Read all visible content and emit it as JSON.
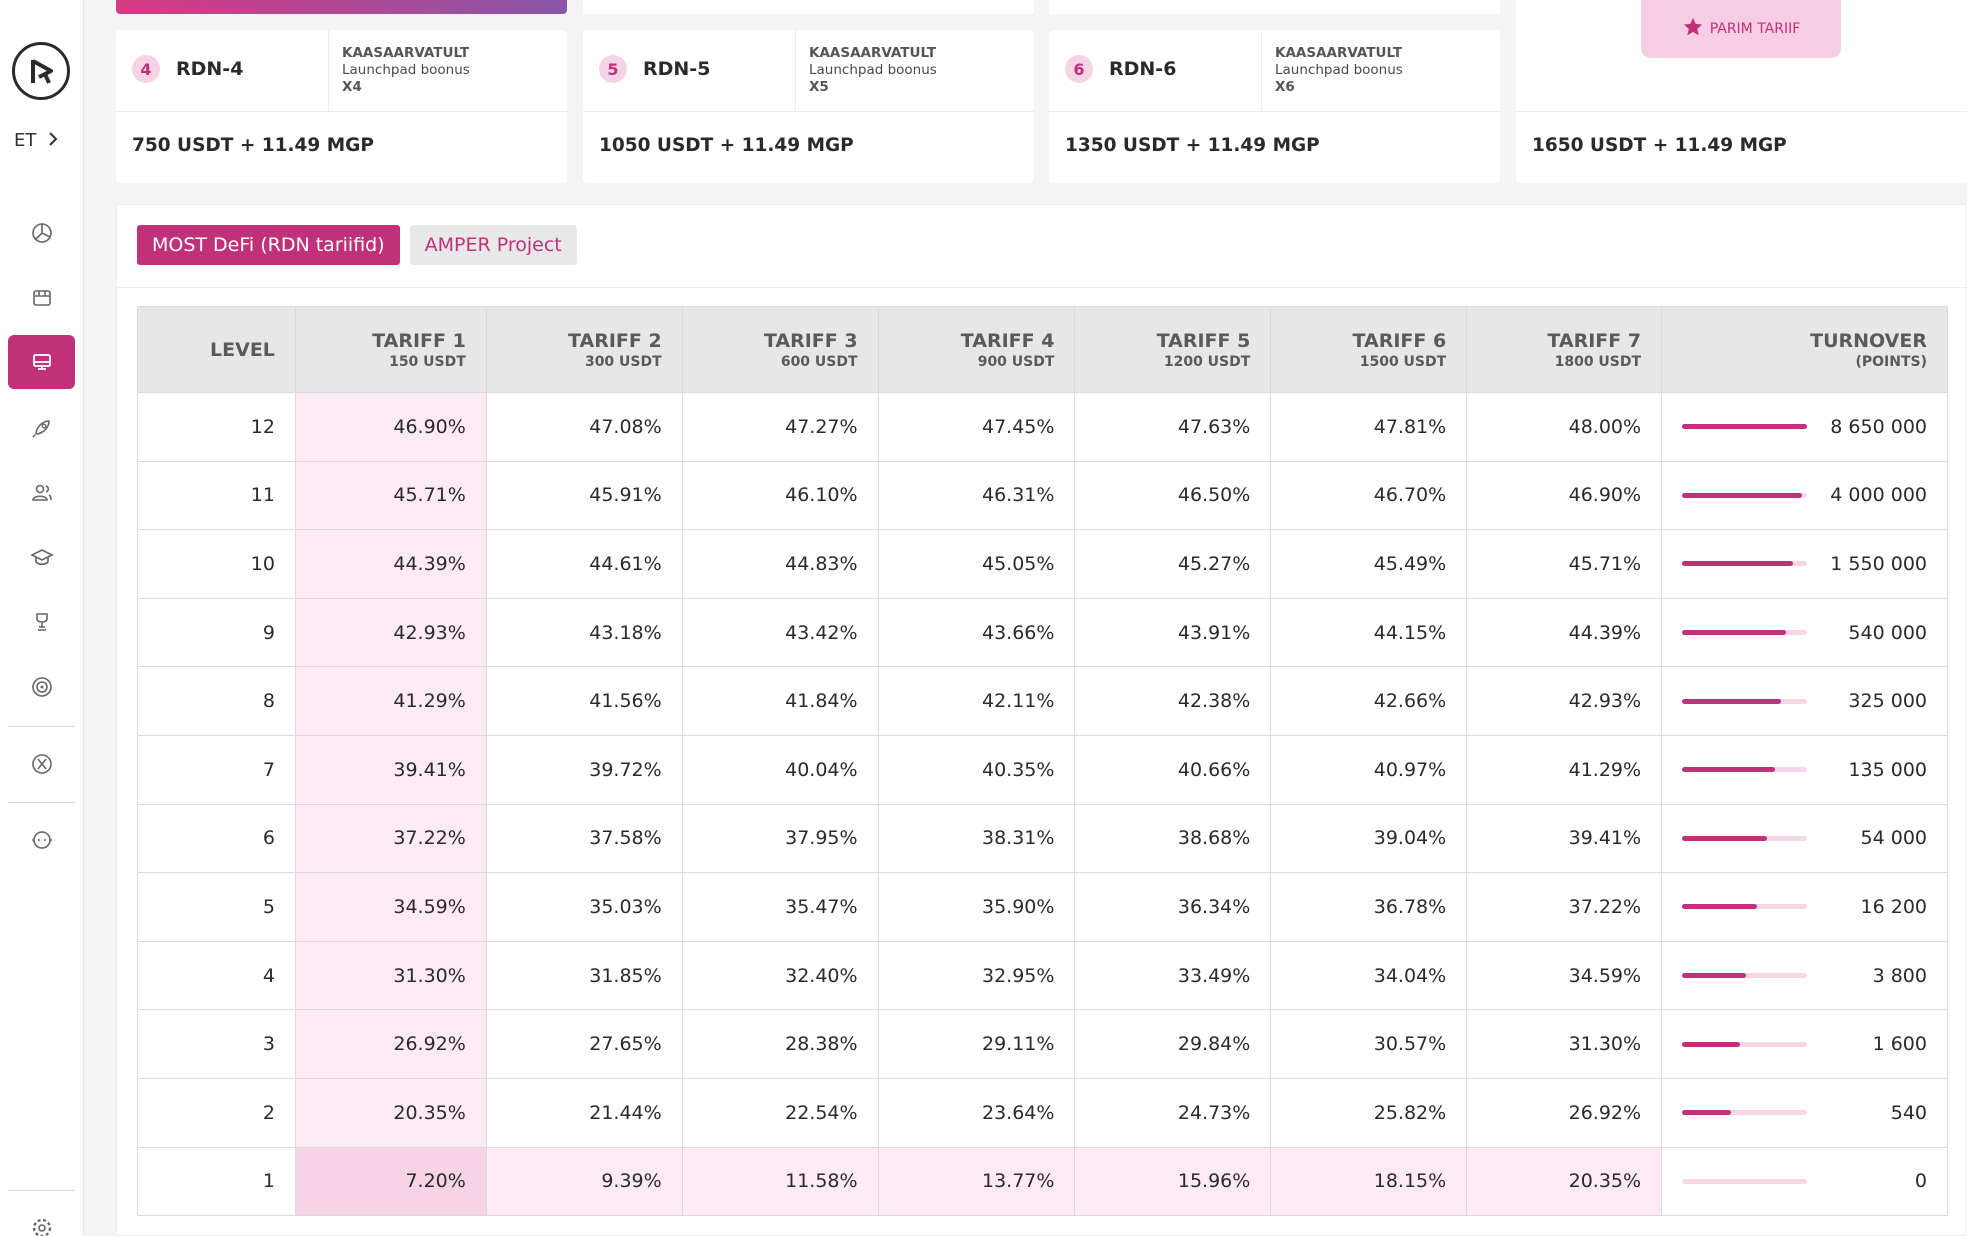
{
  "sidebar": {
    "language": "ET",
    "items": [
      {
        "icon": "dashboard-chart-icon",
        "active": false
      },
      {
        "icon": "store-icon",
        "active": false
      },
      {
        "icon": "monitor-icon",
        "active": true
      },
      {
        "icon": "rocket-icon",
        "active": false
      },
      {
        "icon": "users-icon",
        "active": false
      },
      {
        "icon": "graduation-cap-icon",
        "active": false
      },
      {
        "icon": "trophy-icon",
        "active": false
      },
      {
        "icon": "target-icon",
        "active": false
      },
      {
        "icon": "x-logo-icon",
        "active": false
      },
      {
        "icon": "support-chat-icon",
        "active": false
      },
      {
        "icon": "gear-icon",
        "active": false
      }
    ]
  },
  "cards": [
    {
      "num": "4",
      "name": "RDN-4",
      "line1": "KAASAARVATULT",
      "line2": "Launchpad boonus",
      "line3": "X4",
      "price": "750 USDT + 11.49 MGP"
    },
    {
      "num": "5",
      "name": "RDN-5",
      "line1": "KAASAARVATULT",
      "line2": "Launchpad boonus",
      "line3": "X5",
      "price": "1050 USDT + 11.49 MGP"
    },
    {
      "num": "6",
      "name": "RDN-6",
      "line1": "KAASAARVATULT",
      "line2": "Launchpad boonus",
      "line3": "X6",
      "price": "1350 USDT + 11.49 MGP"
    },
    {
      "price": "1650 USDT + 11.49 MGP"
    }
  ],
  "best_badge": "PARIM TARIIF",
  "tabs": [
    "MOST DeFi (RDN tariifid)",
    "AMPER Project"
  ],
  "table": {
    "level_header": "LEVEL",
    "tariffs": [
      {
        "name": "TARIFF 1",
        "sub": "150 USDT"
      },
      {
        "name": "TARIFF 2",
        "sub": "300 USDT"
      },
      {
        "name": "TARIFF 3",
        "sub": "600 USDT"
      },
      {
        "name": "TARIFF 4",
        "sub": "900 USDT"
      },
      {
        "name": "TARIFF 5",
        "sub": "1200 USDT"
      },
      {
        "name": "TARIFF 6",
        "sub": "1500 USDT"
      },
      {
        "name": "TARIFF 7",
        "sub": "1800 USDT"
      }
    ],
    "turnover_header": "TURNOVER",
    "turnover_sub": "(POINTS)",
    "rows": [
      {
        "level": "12",
        "values": [
          "46.90%",
          "47.08%",
          "47.27%",
          "47.45%",
          "47.63%",
          "47.81%",
          "48.00%"
        ],
        "turnover": "8 650 000",
        "progress": 1.0
      },
      {
        "level": "11",
        "values": [
          "45.71%",
          "45.91%",
          "46.10%",
          "46.31%",
          "46.50%",
          "46.70%",
          "46.90%"
        ],
        "turnover": "4 000 000",
        "progress": 0.96
      },
      {
        "level": "10",
        "values": [
          "44.39%",
          "44.61%",
          "44.83%",
          "45.05%",
          "45.27%",
          "45.49%",
          "45.71%"
        ],
        "turnover": "1 550 000",
        "progress": 0.89
      },
      {
        "level": "9",
        "values": [
          "42.93%",
          "43.18%",
          "43.42%",
          "43.66%",
          "43.91%",
          "44.15%",
          "44.39%"
        ],
        "turnover": "540 000",
        "progress": 0.83
      },
      {
        "level": "8",
        "values": [
          "41.29%",
          "41.56%",
          "41.84%",
          "42.11%",
          "42.38%",
          "42.66%",
          "42.93%"
        ],
        "turnover": "325 000",
        "progress": 0.79
      },
      {
        "level": "7",
        "values": [
          "39.41%",
          "39.72%",
          "40.04%",
          "40.35%",
          "40.66%",
          "40.97%",
          "41.29%"
        ],
        "turnover": "135 000",
        "progress": 0.74
      },
      {
        "level": "6",
        "values": [
          "37.22%",
          "37.58%",
          "37.95%",
          "38.31%",
          "38.68%",
          "39.04%",
          "39.41%"
        ],
        "turnover": "54 000",
        "progress": 0.68
      },
      {
        "level": "5",
        "values": [
          "34.59%",
          "35.03%",
          "35.47%",
          "35.90%",
          "36.34%",
          "36.78%",
          "37.22%"
        ],
        "turnover": "16 200",
        "progress": 0.6
      },
      {
        "level": "4",
        "values": [
          "31.30%",
          "31.85%",
          "32.40%",
          "32.95%",
          "33.49%",
          "34.04%",
          "34.59%"
        ],
        "turnover": "3 800",
        "progress": 0.51
      },
      {
        "level": "3",
        "values": [
          "26.92%",
          "27.65%",
          "28.38%",
          "29.11%",
          "29.84%",
          "30.57%",
          "31.30%"
        ],
        "turnover": "1 600",
        "progress": 0.46
      },
      {
        "level": "2",
        "values": [
          "20.35%",
          "21.44%",
          "22.54%",
          "23.64%",
          "24.73%",
          "25.82%",
          "26.92%"
        ],
        "turnover": "540",
        "progress": 0.39
      },
      {
        "level": "1",
        "values": [
          "7.20%",
          "9.39%",
          "11.58%",
          "13.77%",
          "15.96%",
          "18.15%",
          "20.35%"
        ],
        "turnover": "0",
        "progress": 0.0
      }
    ]
  },
  "colors": {
    "accent": "#c0317a",
    "accent_light": "#fdeaf4",
    "badge_bg": "#f6d3e5"
  }
}
